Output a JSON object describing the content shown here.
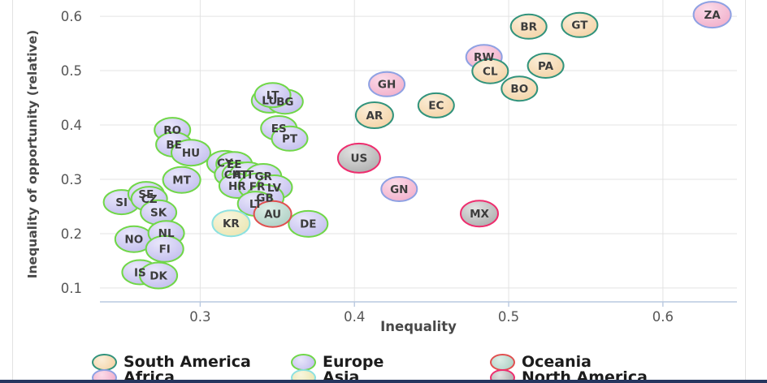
{
  "chart_data": {
    "type": "scatter",
    "title": "",
    "xlabel": "Inequality",
    "ylabel": "Inequality of opportunity (relative)",
    "xlim": [
      0.235,
      0.648
    ],
    "ylim": [
      0.0745,
      0.63
    ],
    "x_ticks": [
      0.3,
      0.4,
      0.5,
      0.6
    ],
    "y_ticks": [
      0.1,
      0.2,
      0.3,
      0.4,
      0.5,
      0.6
    ],
    "grid": true,
    "legend_position": "bottom",
    "groups": {
      "south_america": {
        "label": "South America",
        "fill": "#f3cf9f",
        "light": "#fbeed9",
        "stroke": "#31937c"
      },
      "europe": {
        "label": "Europe",
        "fill": "#bdb8ec",
        "light": "#e9e7fb",
        "stroke": "#70d747"
      },
      "oceania": {
        "label": "Oceania",
        "fill": "#a8ccc0",
        "light": "#ddeee7",
        "stroke": "#e14f4f"
      },
      "africa": {
        "label": "Africa",
        "fill": "#f0a9c6",
        "light": "#fbdbe9",
        "stroke": "#8ea1e3"
      },
      "asia": {
        "label": "Asia",
        "fill": "#e9e4ad",
        "light": "#f8f6dd",
        "stroke": "#8ce1e1"
      },
      "north_america": {
        "label": "North America",
        "fill": "#a6a6a6",
        "light": "#e3e3e3",
        "stroke": "#ee2d6e"
      }
    },
    "legend_columns": [
      [
        "south_america",
        "africa"
      ],
      [
        "europe",
        "asia"
      ],
      [
        "oceania",
        "north_america"
      ]
    ],
    "points": [
      {
        "label": "ZA",
        "x": 0.632,
        "y": 0.603,
        "group": "africa",
        "r": 23
      },
      {
        "label": "BR",
        "x": 0.513,
        "y": 0.581,
        "group": "south_america",
        "r": 22
      },
      {
        "label": "GT",
        "x": 0.546,
        "y": 0.584,
        "group": "south_america",
        "r": 22
      },
      {
        "label": "RW",
        "x": 0.484,
        "y": 0.525,
        "group": "africa",
        "r": 22
      },
      {
        "label": "CL",
        "x": 0.488,
        "y": 0.499,
        "group": "south_america",
        "r": 22
      },
      {
        "label": "PA",
        "x": 0.524,
        "y": 0.509,
        "group": "south_america",
        "r": 22
      },
      {
        "label": "BO",
        "x": 0.507,
        "y": 0.467,
        "group": "south_america",
        "r": 22
      },
      {
        "label": "GH",
        "x": 0.421,
        "y": 0.475,
        "group": "africa",
        "r": 22
      },
      {
        "label": "EC",
        "x": 0.453,
        "y": 0.436,
        "group": "south_america",
        "r": 22
      },
      {
        "label": "AR",
        "x": 0.413,
        "y": 0.418,
        "group": "south_america",
        "r": 23
      },
      {
        "label": "US",
        "x": 0.403,
        "y": 0.339,
        "group": "north_america",
        "r": 26
      },
      {
        "label": "GN",
        "x": 0.429,
        "y": 0.282,
        "group": "africa",
        "r": 22
      },
      {
        "label": "MX",
        "x": 0.481,
        "y": 0.237,
        "group": "north_america",
        "r": 23
      },
      {
        "label": "RO",
        "x": 0.282,
        "y": 0.391,
        "group": "europe",
        "r": 22
      },
      {
        "label": "BE",
        "x": 0.283,
        "y": 0.364,
        "group": "europe",
        "r": 22
      },
      {
        "label": "HU",
        "x": 0.294,
        "y": 0.349,
        "group": "europe",
        "r": 24
      },
      {
        "label": "LU",
        "x": 0.345,
        "y": 0.445,
        "group": "europe",
        "r": 22
      },
      {
        "label": "BG",
        "x": 0.355,
        "y": 0.443,
        "group": "europe",
        "r": 22
      },
      {
        "label": "LT",
        "x": 0.347,
        "y": 0.455,
        "group": "europe",
        "r": 22
      },
      {
        "label": "ES",
        "x": 0.351,
        "y": 0.394,
        "group": "europe",
        "r": 22
      },
      {
        "label": "PT",
        "x": 0.358,
        "y": 0.375,
        "group": "europe",
        "r": 22
      },
      {
        "label": "MT",
        "x": 0.288,
        "y": 0.299,
        "group": "europe",
        "r": 23
      },
      {
        "label": "SI",
        "x": 0.249,
        "y": 0.258,
        "group": "europe",
        "r": 22
      },
      {
        "label": "SE",
        "x": 0.265,
        "y": 0.273,
        "group": "europe",
        "r": 22
      },
      {
        "label": "CZ",
        "x": 0.267,
        "y": 0.264,
        "group": "europe",
        "r": 22
      },
      {
        "label": "SK",
        "x": 0.273,
        "y": 0.239,
        "group": "europe",
        "r": 22
      },
      {
        "label": "NO",
        "x": 0.257,
        "y": 0.19,
        "group": "europe",
        "r": 23
      },
      {
        "label": "NL",
        "x": 0.278,
        "y": 0.201,
        "group": "europe",
        "r": 22
      },
      {
        "label": "FI",
        "x": 0.277,
        "y": 0.172,
        "group": "europe",
        "r": 23
      },
      {
        "label": "IS",
        "x": 0.261,
        "y": 0.129,
        "group": "europe",
        "r": 22
      },
      {
        "label": "DK",
        "x": 0.273,
        "y": 0.123,
        "group": "europe",
        "r": 23
      },
      {
        "label": "CY",
        "x": 0.316,
        "y": 0.33,
        "group": "europe",
        "r": 22
      },
      {
        "label": "EE",
        "x": 0.322,
        "y": 0.328,
        "group": "europe",
        "r": 22
      },
      {
        "label": "CH",
        "x": 0.321,
        "y": 0.309,
        "group": "europe",
        "r": 22
      },
      {
        "label": "AT",
        "x": 0.326,
        "y": 0.309,
        "group": "europe",
        "r": 22
      },
      {
        "label": "IT",
        "x": 0.331,
        "y": 0.309,
        "group": "europe",
        "r": 22
      },
      {
        "label": "GR",
        "x": 0.341,
        "y": 0.306,
        "group": "europe",
        "r": 22
      },
      {
        "label": "HR",
        "x": 0.324,
        "y": 0.288,
        "group": "europe",
        "r": 22
      },
      {
        "label": "FR",
        "x": 0.337,
        "y": 0.287,
        "group": "europe",
        "r": 23
      },
      {
        "label": "LV",
        "x": 0.348,
        "y": 0.285,
        "group": "europe",
        "r": 22
      },
      {
        "label": "GB",
        "x": 0.342,
        "y": 0.266,
        "group": "europe",
        "r": 23
      },
      {
        "label": "LT",
        "x": 0.336,
        "y": 0.255,
        "group": "europe",
        "r": 22
      },
      {
        "label": "DE",
        "x": 0.37,
        "y": 0.218,
        "group": "europe",
        "r": 24
      },
      {
        "label": "KR",
        "x": 0.32,
        "y": 0.219,
        "group": "asia",
        "r": 23
      },
      {
        "label": "AU",
        "x": 0.347,
        "y": 0.236,
        "group": "oceania",
        "r": 23
      }
    ]
  }
}
